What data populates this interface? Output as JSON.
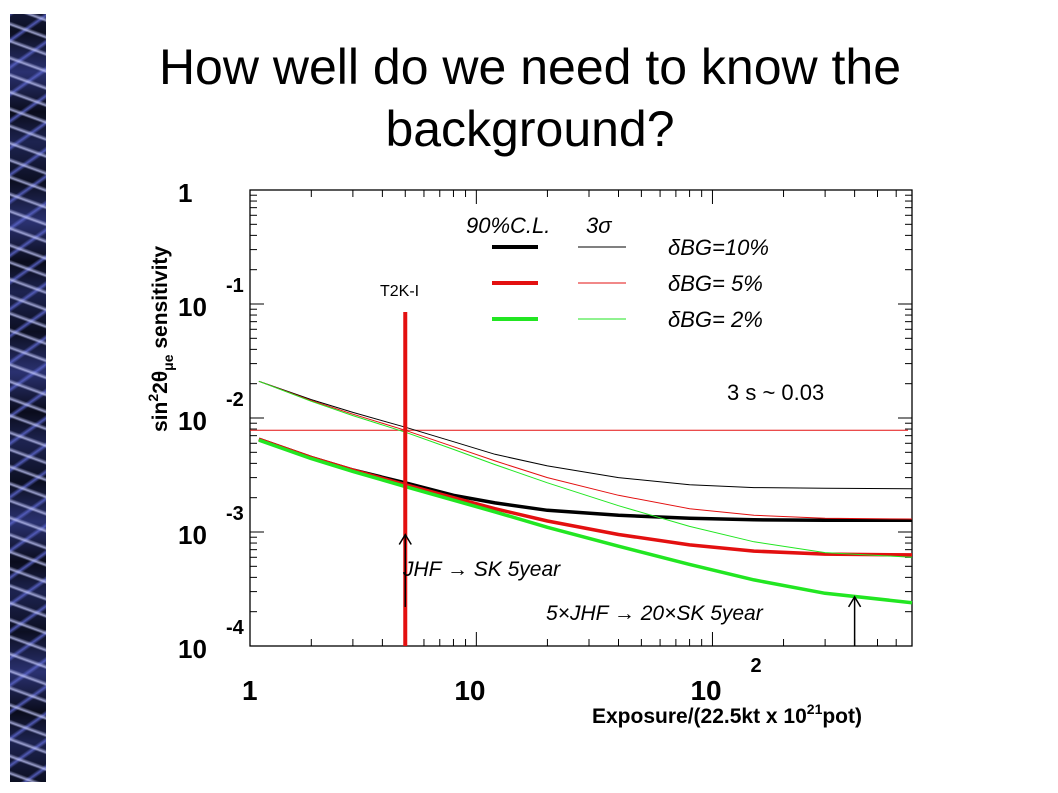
{
  "slide": {
    "title": "How well do we need to know the background?"
  },
  "colors": {
    "black": "#000000",
    "red": "#e31010",
    "green": "#22e622",
    "frame": "#000000"
  },
  "chart_data": {
    "type": "line",
    "xscale": "log",
    "yscale": "log",
    "xlim": [
      1.1,
      700
    ],
    "ylim": [
      0.0001,
      1
    ],
    "xlabel_parts": [
      "Exposure/(22.5kt x 10",
      "21",
      "pot)"
    ],
    "ylabel_parts": [
      "sin",
      "2",
      "2θ",
      "μe",
      " sensitivity"
    ],
    "x_ticks": [
      {
        "value": 1.1,
        "base": "1",
        "exp": ""
      },
      {
        "value": 10,
        "base": "10",
        "exp": ""
      },
      {
        "value": 100,
        "base": "10",
        "exp": "2"
      }
    ],
    "y_ticks": [
      {
        "value": 1,
        "base": "1",
        "exp": ""
      },
      {
        "value": 0.1,
        "base": "10",
        "exp": "-1"
      },
      {
        "value": 0.01,
        "base": "10",
        "exp": "-2"
      },
      {
        "value": 0.001,
        "base": "10",
        "exp": "-3"
      },
      {
        "value": 0.0001,
        "base": "10",
        "exp": "-4"
      }
    ],
    "legend": {
      "header_cl": "90%C.L.",
      "header_sigma": "3σ",
      "entries": [
        {
          "label": "δBG=10%",
          "color": "#000000"
        },
        {
          "label": "δBG= 5%",
          "color": "#e31010"
        },
        {
          "label": "δBG= 2%",
          "color": "#22e622"
        }
      ]
    },
    "series": [
      {
        "name": "δBG=10%",
        "cl": "90%C.L.",
        "color": "#000000",
        "width": "thick",
        "x": [
          1.2,
          2,
          3,
          5,
          8,
          12,
          20,
          40,
          80,
          150,
          300,
          700
        ],
        "y": [
          0.0065,
          0.0045,
          0.0035,
          0.0027,
          0.0021,
          0.0018,
          0.00155,
          0.0014,
          0.00132,
          0.00128,
          0.00127,
          0.00127
        ]
      },
      {
        "name": "δBG=5%",
        "cl": "90%C.L.",
        "color": "#e31010",
        "width": "thick",
        "x": [
          1.2,
          2,
          3,
          5,
          8,
          12,
          20,
          40,
          80,
          150,
          300,
          700
        ],
        "y": [
          0.0065,
          0.0045,
          0.0035,
          0.0026,
          0.002,
          0.0016,
          0.00125,
          0.00095,
          0.00077,
          0.00068,
          0.00064,
          0.00063
        ]
      },
      {
        "name": "δBG=2%",
        "cl": "90%C.L.",
        "color": "#22e622",
        "width": "thick",
        "x": [
          1.2,
          2,
          3,
          5,
          8,
          12,
          20,
          40,
          80,
          150,
          300,
          700
        ],
        "y": [
          0.0064,
          0.0044,
          0.0034,
          0.0025,
          0.0019,
          0.0015,
          0.0011,
          0.00075,
          0.00052,
          0.00038,
          0.00029,
          0.00024
        ]
      },
      {
        "name": "δBG=10%",
        "cl": "3σ",
        "color": "#000000",
        "width": "thin",
        "x": [
          1.2,
          2,
          3,
          5,
          8,
          12,
          20,
          40,
          80,
          150,
          300,
          700
        ],
        "y": [
          0.021,
          0.0145,
          0.0112,
          0.0083,
          0.0062,
          0.0048,
          0.0038,
          0.003,
          0.0026,
          0.00245,
          0.00242,
          0.0024
        ]
      },
      {
        "name": "δBG=5%",
        "cl": "3σ",
        "color": "#e31010",
        "width": "thin",
        "x": [
          1.2,
          2,
          3,
          5,
          8,
          12,
          20,
          40,
          80,
          150,
          300,
          700
        ],
        "y": [
          0.021,
          0.0142,
          0.0108,
          0.0078,
          0.0056,
          0.0042,
          0.003,
          0.0021,
          0.0016,
          0.0014,
          0.00132,
          0.0013
        ]
      },
      {
        "name": "δBG=2%",
        "cl": "3σ",
        "color": "#22e622",
        "width": "thin",
        "x": [
          1.2,
          2,
          3,
          5,
          8,
          12,
          20,
          40,
          80,
          150,
          300,
          700
        ],
        "y": [
          0.021,
          0.014,
          0.0105,
          0.0075,
          0.0053,
          0.0039,
          0.0027,
          0.0017,
          0.00112,
          0.00082,
          0.00066,
          0.0006
        ]
      }
    ],
    "hline": {
      "y": 0.0078,
      "label": "3 s ~ 0.03",
      "color": "#e31010"
    },
    "vline": {
      "x": 5,
      "y_top": 0.085,
      "label": "T2K-I",
      "color": "#e31010"
    },
    "annotations": [
      {
        "text": "JHF → SK 5year",
        "arrow_x": 5,
        "arrow_y_from": 0.00022,
        "arrow_y_to": 0.00095
      },
      {
        "text": "5×JHF → 20×SK 5year",
        "arrow_x": 400,
        "arrow_y_from": 0.0001,
        "arrow_y_to": 0.00027
      }
    ]
  }
}
